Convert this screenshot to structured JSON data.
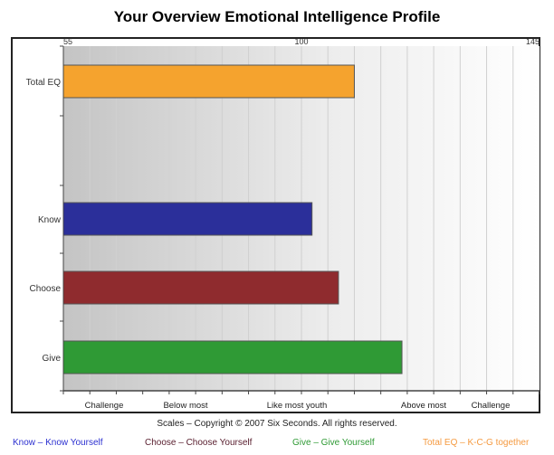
{
  "title": "Your Overview Emotional Intelligence Profile",
  "chart_data": {
    "type": "bar",
    "orientation": "horizontal",
    "categories": [
      "Total EQ",
      "Know",
      "Choose",
      "Give"
    ],
    "values": [
      110,
      102,
      107,
      119
    ],
    "colors": [
      "#f5a32e",
      "#2b2f9a",
      "#8f2b2e",
      "#2f9a35"
    ],
    "xlim": [
      55,
      145
    ],
    "x_tick_labels": [
      "55",
      "100",
      "145"
    ],
    "grid": true,
    "zone_labels": [
      "Challenge",
      "Below most",
      "Like most youth",
      "Above most",
      "Challenge"
    ]
  },
  "copyright": "Scales – Copyright © 2007 Six Seconds.  All rights reserved.",
  "legend": [
    {
      "text": "Know – Know Yourself",
      "color": "#2b2fd0"
    },
    {
      "text": "Choose – Choose Yourself",
      "color": "#5a2030"
    },
    {
      "text": "Give – Give Yourself",
      "color": "#2f9a35"
    },
    {
      "text": "Total EQ – K-C-G together",
      "color": "#f59a40"
    }
  ]
}
